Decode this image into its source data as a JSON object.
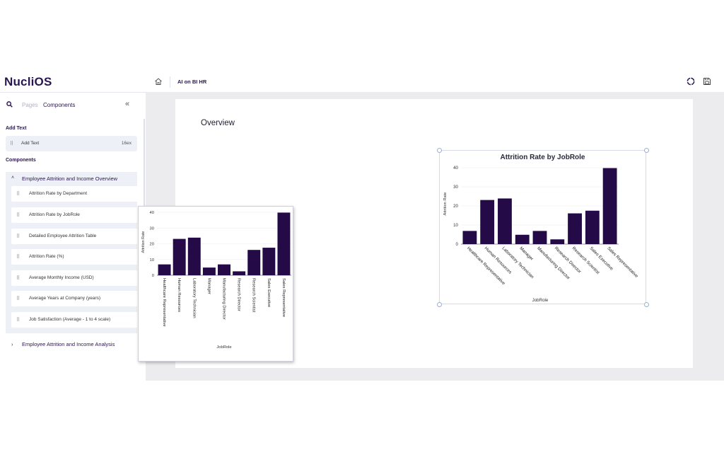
{
  "app": {
    "logo": "NucliOS"
  },
  "sidebar": {
    "tabs": {
      "pages": "Pages",
      "components": "Components"
    },
    "add_text_section": "Add Text",
    "add_text_item": {
      "label": "Add Text",
      "size": "16ex"
    },
    "components_section": "Components",
    "groups": [
      {
        "label": "Employee Attrition and Income Overview",
        "expanded": true,
        "items": [
          "Attrition Rate by Department",
          "Attrition Rate by JobRole",
          "Detailed Employee Attrition Table",
          "Attrition Rate (%)",
          "Average Monthly Income (USD)",
          "Average Years at Company (years)",
          "Job Satisfaction (Average - 1 to 4 scale)"
        ]
      },
      {
        "label": "Employee Attrition and Income Analysis",
        "expanded": false
      }
    ]
  },
  "header": {
    "breadcrumb": "AI on BI HR"
  },
  "canvas": {
    "page_title": "Overview"
  },
  "icons": {
    "search": "search-icon",
    "collapse": "double-chevron-left-icon",
    "home": "home-icon",
    "refresh": "refresh-icon",
    "save": "save-icon",
    "drag": "drag-handle-icon"
  },
  "colors": {
    "bar": "#240a46",
    "brand": "#2a1650"
  },
  "chart_data": [
    {
      "type": "bar",
      "title": "Attrition Rate by JobRole",
      "xlabel": "JobRole",
      "ylabel": "Attrition Rate",
      "categories": [
        "Healthcare Representative",
        "Human Resources",
        "Laboratory Technician",
        "Manager",
        "Manufacturing Director",
        "Research Director",
        "Research Scientist",
        "Sales Executive",
        "Sales Representative"
      ],
      "values": [
        6.9,
        23.1,
        23.9,
        4.9,
        6.9,
        2.5,
        16.1,
        17.5,
        39.8
      ],
      "ylim": [
        0,
        40
      ],
      "yticks": [
        0,
        10,
        20,
        30,
        40
      ],
      "grid": true
    },
    {
      "type": "bar",
      "title": "",
      "xlabel": "JobRole",
      "ylabel": "Attrition Rate",
      "categories": [
        "Healthcare Representative",
        "Human Resources",
        "Laboratory Technician",
        "Manager",
        "Manufacturing Director",
        "Research Director",
        "Research Scientist",
        "Sales Executive",
        "Sales Representative"
      ],
      "values": [
        6.9,
        23.1,
        23.9,
        4.9,
        6.9,
        2.5,
        16.1,
        17.5,
        39.8
      ],
      "ylim": [
        0,
        40
      ],
      "yticks": [
        0,
        10,
        20,
        30,
        40
      ],
      "grid": true
    }
  ]
}
